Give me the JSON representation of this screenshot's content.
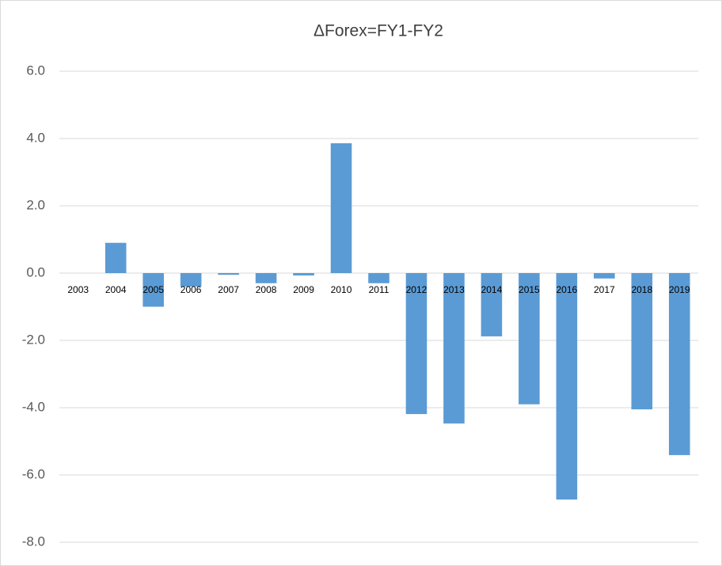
{
  "chart_data": {
    "type": "bar",
    "title": "ΔForex=FY1-FY2",
    "categories": [
      "2003",
      "2004",
      "2005",
      "2006",
      "2007",
      "2008",
      "2009",
      "2010",
      "2011",
      "2012",
      "2013",
      "2014",
      "2015",
      "2016",
      "2017",
      "2018",
      "2019"
    ],
    "values": [
      0,
      0.9,
      -1.0,
      -0.4,
      -0.05,
      -0.3,
      -0.07,
      3.86,
      -0.3,
      -4.19,
      -4.47,
      -1.88,
      -3.9,
      -6.73,
      -0.16,
      -4.05,
      -5.41
    ],
    "color": "#5b9bd5",
    "ylim": [
      -8,
      6
    ],
    "yticks": [
      {
        "value": -8,
        "label": "-8.0"
      },
      {
        "value": -6,
        "label": "-6.0"
      },
      {
        "value": -4,
        "label": "-4.0"
      },
      {
        "value": -2,
        "label": "-2.0"
      },
      {
        "value": 0,
        "label": "0.0"
      },
      {
        "value": 2,
        "label": "2.0"
      },
      {
        "value": 4,
        "label": "4.0"
      },
      {
        "value": 6,
        "label": "6.0"
      }
    ],
    "grid": true
  }
}
